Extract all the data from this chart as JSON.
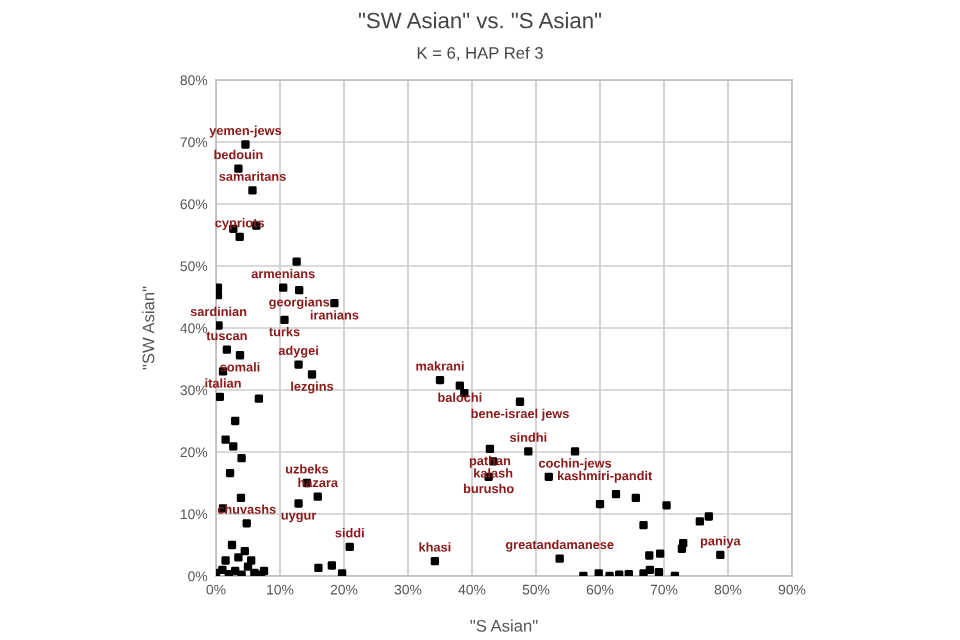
{
  "chart_data": {
    "type": "scatter",
    "title": "\"SW Asian\" vs. \"S Asian\"",
    "subtitle": "K = 6, HAP Ref 3",
    "xlabel": "\"S Asian\"",
    "ylabel": "\"SW Asian\"",
    "xlim": [
      0,
      90
    ],
    "ylim": [
      0,
      80
    ],
    "xticks": [
      {
        "value": 0,
        "label": "0%"
      },
      {
        "value": 10,
        "label": "10%"
      },
      {
        "value": 20,
        "label": "20%"
      },
      {
        "value": 30,
        "label": "30%"
      },
      {
        "value": 40,
        "label": "40%"
      },
      {
        "value": 50,
        "label": "50%"
      },
      {
        "value": 60,
        "label": "60%"
      },
      {
        "value": 70,
        "label": "70%"
      },
      {
        "value": 80,
        "label": "80%"
      },
      {
        "value": 90,
        "label": "90%"
      }
    ],
    "yticks": [
      {
        "value": 0,
        "label": "0%"
      },
      {
        "value": 10,
        "label": "10%"
      },
      {
        "value": 20,
        "label": "20%"
      },
      {
        "value": 30,
        "label": "30%"
      },
      {
        "value": 40,
        "label": "40%"
      },
      {
        "value": 50,
        "label": "50%"
      },
      {
        "value": 60,
        "label": "60%"
      },
      {
        "value": 70,
        "label": "70%"
      },
      {
        "value": 80,
        "label": "80%"
      }
    ],
    "grid": true,
    "marker": "square",
    "series": [
      {
        "color": "#000000",
        "x": [
          4.6,
          3.5,
          5.7,
          3.7,
          10.5,
          13,
          18.5,
          10.7,
          0.4,
          1.7,
          3.75,
          1.1,
          12.9,
          15,
          14.2,
          15.9,
          12.9,
          4.8,
          20.9,
          34.2,
          35,
          38.1,
          38.8,
          47.5,
          48.8,
          56.1,
          42.8,
          43.3,
          42.6,
          52,
          53.7,
          78.8,
          2.7,
          6.3,
          12.6,
          0.3,
          0.3,
          2.7,
          2.2,
          3.9,
          1.1,
          0.6,
          6.7,
          3,
          1.5,
          4,
          60,
          62.5,
          65.6,
          66.8,
          70.4,
          75.6,
          77,
          73,
          69.4,
          67.7,
          72.8,
          57.4,
          59.8,
          61.5,
          63,
          64.5,
          66.8,
          67.8,
          69.2,
          71.7,
          16,
          18.1,
          19.7,
          0,
          1,
          2,
          3,
          4,
          5,
          6,
          7,
          1.5,
          3.5,
          5.5,
          7.5,
          2.5,
          4.5
        ],
        "values": [
          69.6,
          65.7,
          62.2,
          54.7,
          46.5,
          46.1,
          44,
          41.3,
          40.4,
          36.5,
          35.6,
          33,
          34.1,
          32.5,
          15,
          12.8,
          11.7,
          8.5,
          4.7,
          2.4,
          31.6,
          30.7,
          29.5,
          28.1,
          20.1,
          20.1,
          20.5,
          18.5,
          16,
          16,
          2.8,
          3.4,
          56,
          56.5,
          50.7,
          46.5,
          45.3,
          20.9,
          16.6,
          12.6,
          10.9,
          28.9,
          28.6,
          25,
          22,
          19,
          11.6,
          13.2,
          12.6,
          8.2,
          11.4,
          8.8,
          9.6,
          5.3,
          3.6,
          3.3,
          4.4,
          0,
          0.4,
          0,
          0.2,
          0.3,
          0.4,
          1,
          0.6,
          0,
          1.3,
          1.7,
          0.4,
          0.5,
          1,
          0.3,
          0.8,
          0.2,
          1.5,
          0.5,
          0.2,
          2.5,
          3,
          2.5,
          0.8,
          5,
          4
        ]
      }
    ],
    "annotations": [
      {
        "text": "yemen-jews",
        "x": 4.6,
        "y": 69.6
      },
      {
        "text": "bedouin",
        "x": 3.5,
        "y": 65.7
      },
      {
        "text": "samaritans",
        "x": 5.7,
        "y": 62.2
      },
      {
        "text": "cypriots",
        "x": 3.7,
        "y": 54.7
      },
      {
        "text": "armenians",
        "x": 10.5,
        "y": 46.5
      },
      {
        "text": "georgians",
        "x": 13,
        "y": 46.1
      },
      {
        "text": "iranians",
        "x": 18.5,
        "y": 44
      },
      {
        "text": "turks",
        "x": 10.7,
        "y": 41.3
      },
      {
        "text": "sardinian",
        "x": 0.4,
        "y": 40.4
      },
      {
        "text": "tuscan",
        "x": 1.7,
        "y": 36.5
      },
      {
        "text": "somali",
        "x": 3.75,
        "y": 35.6
      },
      {
        "text": "italian",
        "x": 1.1,
        "y": 33
      },
      {
        "text": "adygei",
        "x": 12.9,
        "y": 34.1
      },
      {
        "text": "lezgins",
        "x": 15,
        "y": 32.5
      },
      {
        "text": "uzbeks",
        "x": 14.2,
        "y": 15
      },
      {
        "text": "hazara",
        "x": 15.9,
        "y": 12.8
      },
      {
        "text": "uygur",
        "x": 12.9,
        "y": 11.7
      },
      {
        "text": "chuvashs",
        "x": 4.8,
        "y": 8.5
      },
      {
        "text": "siddi",
        "x": 20.9,
        "y": 4.7
      },
      {
        "text": "khasi",
        "x": 34.2,
        "y": 2.4
      },
      {
        "text": "makrani",
        "x": 35,
        "y": 31.6
      },
      {
        "text": "balochi",
        "x": 38.1,
        "y": 30.7
      },
      {
        "text": "bene-israel jews",
        "x": 47.5,
        "y": 28.1
      },
      {
        "text": "sindhi",
        "x": 48.8,
        "y": 20.1
      },
      {
        "text": "cochin-jews",
        "x": 56.1,
        "y": 20.1
      },
      {
        "text": "pathan",
        "x": 42.8,
        "y": 20.5
      },
      {
        "text": "kalash",
        "x": 43.3,
        "y": 18.5
      },
      {
        "text": "burusho",
        "x": 42.6,
        "y": 16
      },
      {
        "text": "kashmiri-pandit",
        "x": 52,
        "y": 16
      },
      {
        "text": "greatandamanese",
        "x": 53.7,
        "y": 2.8
      },
      {
        "text": "paniya",
        "x": 78.8,
        "y": 3.4
      }
    ]
  }
}
